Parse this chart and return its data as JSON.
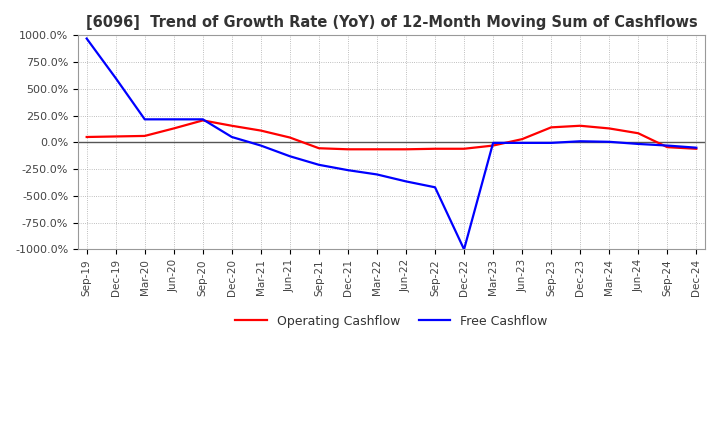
{
  "title": "[6096]  Trend of Growth Rate (YoY) of 12-Month Moving Sum of Cashflows",
  "title_color": "#333333",
  "background_color": "#ffffff",
  "plot_background_color": "#ffffff",
  "grid_color": "#aaaaaa",
  "x_labels": [
    "Sep-19",
    "Dec-19",
    "Mar-20",
    "Jun-20",
    "Sep-20",
    "Dec-20",
    "Mar-21",
    "Jun-21",
    "Sep-21",
    "Dec-21",
    "Mar-22",
    "Jun-22",
    "Sep-22",
    "Dec-22",
    "Mar-23",
    "Jun-23",
    "Sep-23",
    "Dec-23",
    "Mar-24",
    "Jun-24",
    "Sep-24",
    "Dec-24"
  ],
  "operating_cashflow": [
    50,
    55,
    60,
    130,
    205,
    155,
    110,
    45,
    -55,
    -65,
    -65,
    -65,
    -60,
    -60,
    -30,
    30,
    140,
    155,
    130,
    85,
    -45,
    -60
  ],
  "free_cashflow": [
    970,
    600,
    215,
    215,
    215,
    50,
    -30,
    -130,
    -210,
    -260,
    -300,
    -365,
    -420,
    -1000,
    -5,
    -5,
    -5,
    10,
    5,
    -15,
    -30,
    -50
  ],
  "ylim": [
    -1000,
    1000
  ],
  "yticks": [
    -1000,
    -750,
    -500,
    -250,
    0,
    250,
    500,
    750,
    1000
  ],
  "yticklabels": [
    "-1000.0%",
    "-750.0%",
    "-500.0%",
    "-250.0%",
    "0.0%",
    "250.0%",
    "500.0%",
    "750.0%",
    "1000.0%"
  ],
  "operating_color": "#ff0000",
  "free_color": "#0000ff",
  "legend_labels": [
    "Operating Cashflow",
    "Free Cashflow"
  ]
}
